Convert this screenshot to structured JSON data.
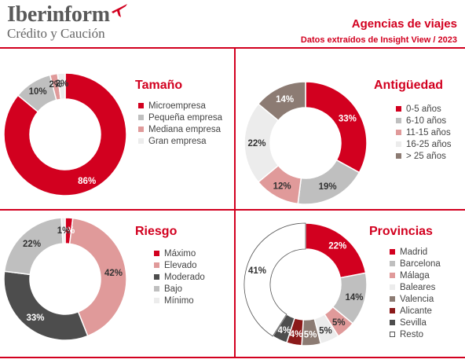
{
  "header": {
    "brand_name": "Iberinform",
    "brand_sub": "Crédito y Caución",
    "title": "Agencias de viajes",
    "subtitle": "Datos extraídos de Insight View / 2023"
  },
  "colors": {
    "accent": "#d2001f",
    "red": "#d2001f",
    "gray": "#bfbfbf",
    "pink": "#e09a9a",
    "light": "#ececec",
    "taupe": "#8c7b73",
    "dark": "#4d4d4d",
    "darkred": "#8b1a1a",
    "white": "#ffffff"
  },
  "chart_data": [
    {
      "id": "tamano",
      "type": "pie",
      "title": "Tamaño",
      "categories": [
        "Microempresa",
        "Pequeña empresa",
        "Mediana empresa",
        "Gran empresa"
      ],
      "values": [
        86,
        10,
        2,
        2
      ],
      "labels": [
        "86%",
        "10%",
        "2%",
        "2%"
      ],
      "colors": [
        "red",
        "gray",
        "pink",
        "light"
      ]
    },
    {
      "id": "antiguedad",
      "type": "pie",
      "title": "Antigüedad",
      "categories": [
        "0-5 años",
        "6-10 años",
        "11-15 años",
        "16-25 años",
        "> 25 años"
      ],
      "values": [
        33,
        19,
        12,
        22,
        14
      ],
      "labels": [
        "33%",
        "19%",
        "12%",
        "22%",
        "14%"
      ],
      "colors": [
        "red",
        "gray",
        "pink",
        "light",
        "taupe"
      ]
    },
    {
      "id": "riesgo",
      "type": "pie",
      "title": "Riesgo",
      "categories": [
        "Máximo",
        "Elevado",
        "Moderado",
        "Bajo",
        "Mínimo"
      ],
      "values": [
        2,
        42,
        33,
        22,
        1
      ],
      "labels": [
        "2%",
        "42%",
        "33%",
        "22%",
        "1%"
      ],
      "colors": [
        "red",
        "pink",
        "dark",
        "gray",
        "light"
      ]
    },
    {
      "id": "provincias",
      "type": "pie",
      "title": "Provincias",
      "categories": [
        "Madrid",
        "Barcelona",
        "Málaga",
        "Baleares",
        "Valencia",
        "Alicante",
        "Sevilla",
        "Resto"
      ],
      "values": [
        22,
        14,
        5,
        5,
        5,
        4,
        4,
        41
      ],
      "labels": [
        "22%",
        "14%",
        "5%",
        "5%",
        "5%",
        "4%",
        "4%",
        "41%"
      ],
      "colors": [
        "red",
        "gray",
        "pink",
        "light",
        "taupe",
        "darkred",
        "dark",
        "white"
      ]
    }
  ]
}
